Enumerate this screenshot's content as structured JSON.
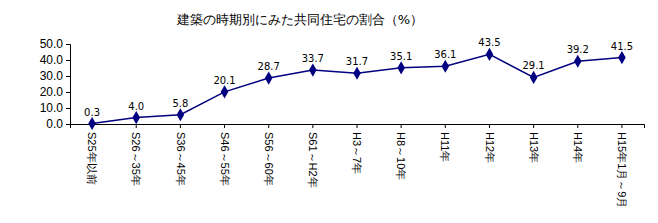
{
  "chart_data": {
    "type": "line",
    "title": "建築の時期別にみた共同住宅の割合（%）",
    "categories": [
      "S25年以前",
      "S26～35年",
      "S36～45年",
      "S46～55年",
      "S56～60年",
      "S61～H2年",
      "H3～7年",
      "H8～10年",
      "H11年",
      "H12年",
      "H13年",
      "H14年",
      "H15年1月～9月"
    ],
    "values": [
      0.3,
      4.0,
      5.8,
      20.1,
      28.7,
      33.7,
      31.7,
      35.1,
      36.1,
      43.5,
      29.1,
      39.2,
      41.5
    ],
    "value_labels": [
      "0.3",
      "4.0",
      "5.8",
      "20.1",
      "28.7",
      "33.7",
      "31.7",
      "35.1",
      "36.1",
      "43.5",
      "29.1",
      "39.2",
      "41.5"
    ],
    "color": "#000080",
    "marker": "diamond",
    "line_style": "solid",
    "data_labels": true,
    "grid": false,
    "ylim": [
      0,
      50
    ],
    "yticks": [
      {
        "value": 0,
        "label": "0.0"
      },
      {
        "value": 10,
        "label": "10.0"
      },
      {
        "value": 20,
        "label": "20.0"
      },
      {
        "value": 30,
        "label": "30.0"
      },
      {
        "value": 40,
        "label": "40.0"
      },
      {
        "value": 50,
        "label": "50.0"
      }
    ]
  }
}
